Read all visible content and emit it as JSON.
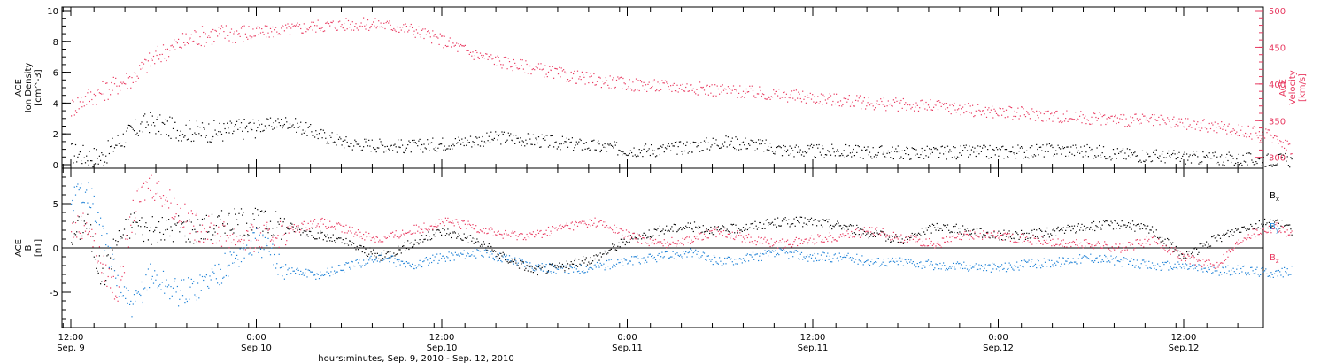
{
  "chart_data": [
    {
      "type": "scatter",
      "panel": "top",
      "ylabel_left": [
        "ACE",
        "Ion Density",
        "[cm^-3]"
      ],
      "ylabel_right": [
        "ACE",
        "Velocity",
        "[km/s]"
      ],
      "ylim_left": [
        0,
        10
      ],
      "yticks_left": [
        0,
        2,
        4,
        6,
        8,
        10
      ],
      "ylim_right": [
        290,
        500
      ],
      "yticks_right": [
        300,
        350,
        400,
        450,
        500
      ],
      "xlim_hours": [
        0,
        80
      ],
      "series": [
        {
          "axis": "left",
          "color": "#000000",
          "x": [
            0,
            1,
            2,
            3,
            4,
            5,
            6,
            7,
            8,
            10,
            12,
            14,
            16,
            18,
            20,
            22,
            24,
            26,
            28,
            30,
            32,
            34,
            36,
            38,
            40,
            42,
            44,
            46,
            48,
            50,
            52,
            54,
            56,
            58,
            60,
            62,
            64,
            66,
            68,
            70,
            72,
            74,
            76,
            78,
            79
          ],
          "y": [
            0.8,
            0.6,
            0.5,
            1.5,
            2.2,
            2.8,
            2.5,
            2.3,
            2.2,
            2.2,
            2.5,
            2.8,
            2.0,
            1.4,
            1.3,
            1.2,
            1.4,
            1.6,
            1.8,
            1.6,
            1.4,
            1.2,
            1.0,
            1.0,
            1.2,
            1.5,
            1.4,
            1.0,
            0.9,
            0.9,
            0.85,
            0.8,
            0.8,
            0.85,
            0.85,
            0.9,
            1.0,
            0.9,
            0.7,
            0.6,
            0.5,
            0.45,
            0.35,
            0.35,
            0.3
          ]
        },
        {
          "axis": "right",
          "color": "#e8385f",
          "x": [
            0,
            1,
            2,
            3,
            4,
            5,
            6,
            7,
            8,
            10,
            12,
            14,
            16,
            18,
            20,
            22,
            24,
            26,
            28,
            30,
            32,
            34,
            36,
            38,
            40,
            42,
            44,
            46,
            48,
            50,
            52,
            54,
            56,
            58,
            60,
            62,
            64,
            66,
            68,
            70,
            72,
            74,
            76,
            78,
            79
          ],
          "y": [
            368,
            382,
            390,
            400,
            410,
            430,
            445,
            455,
            465,
            470,
            470,
            475,
            480,
            482,
            482,
            475,
            460,
            442,
            430,
            422,
            412,
            406,
            400,
            398,
            396,
            392,
            389,
            385,
            382,
            378,
            374,
            372,
            370,
            366,
            362,
            360,
            356,
            354,
            352,
            350,
            346,
            342,
            336,
            328,
            312
          ]
        }
      ]
    },
    {
      "type": "scatter",
      "panel": "bottom",
      "ylabel": [
        "ACE",
        "B",
        "[nT]"
      ],
      "ylim": [
        -9,
        9
      ],
      "yticks": [
        -5,
        0,
        5
      ],
      "zero_line": true,
      "xlim_hours": [
        0,
        80
      ],
      "legend": [
        "Bx",
        "By",
        "Bz"
      ],
      "series": [
        {
          "name": "Bx",
          "color": "#000000",
          "x": [
            0,
            1,
            2,
            3,
            4,
            5,
            6,
            7,
            8,
            10,
            12,
            14,
            16,
            18,
            20,
            22,
            24,
            26,
            28,
            30,
            32,
            34,
            36,
            38,
            40,
            42,
            44,
            46,
            48,
            50,
            52,
            54,
            56,
            58,
            60,
            62,
            64,
            66,
            68,
            70,
            72,
            74,
            76,
            78,
            79
          ],
          "y": [
            1.5,
            3.0,
            -3.5,
            1.0,
            3.0,
            2.0,
            2.0,
            2.5,
            2.0,
            3.0,
            3.0,
            2.5,
            1.5,
            0.5,
            -1.0,
            0.5,
            2.0,
            1.0,
            -1.0,
            -2.5,
            -2.0,
            -1.0,
            1.0,
            2.0,
            2.5,
            2.0,
            2.5,
            3.0,
            3.0,
            2.5,
            1.5,
            1.0,
            2.5,
            2.0,
            1.5,
            1.5,
            2.0,
            2.5,
            2.8,
            2.0,
            -1.0,
            1.0,
            2.5,
            3.0,
            2.0
          ]
        },
        {
          "name": "By",
          "color": "#1a7fd6",
          "x": [
            0,
            1,
            2,
            3,
            4,
            5,
            6,
            7,
            8,
            10,
            12,
            14,
            16,
            18,
            20,
            22,
            24,
            26,
            28,
            30,
            32,
            34,
            36,
            38,
            40,
            42,
            44,
            46,
            48,
            50,
            52,
            54,
            56,
            58,
            60,
            62,
            64,
            66,
            68,
            70,
            72,
            74,
            76,
            78,
            79
          ],
          "y": [
            5.5,
            7.0,
            2.0,
            -4.0,
            -7.0,
            -3.0,
            -4.0,
            -5.0,
            -4.5,
            -2.0,
            1.0,
            -2.5,
            -3.0,
            -2.0,
            -1.0,
            -2.0,
            -1.0,
            -0.5,
            -1.0,
            -2.0,
            -2.5,
            -2.0,
            -1.5,
            -1.0,
            -0.5,
            -1.5,
            -1.0,
            -0.5,
            -1.0,
            -1.0,
            -1.5,
            -1.5,
            -2.0,
            -2.0,
            -2.2,
            -1.8,
            -1.5,
            -1.0,
            -1.5,
            -2.0,
            -2.0,
            -2.5,
            -2.5,
            -2.8,
            -2.5
          ]
        },
        {
          "name": "Bz",
          "color": "#e8385f",
          "x": [
            0,
            1,
            2,
            3,
            4,
            5,
            6,
            7,
            8,
            10,
            12,
            14,
            16,
            18,
            20,
            22,
            24,
            26,
            28,
            30,
            32,
            34,
            36,
            38,
            40,
            42,
            44,
            46,
            48,
            50,
            52,
            54,
            56,
            58,
            60,
            62,
            64,
            66,
            68,
            70,
            72,
            74,
            76,
            78,
            79
          ],
          "y": [
            2.0,
            3.0,
            -2.0,
            -5.0,
            4.0,
            7.5,
            6.0,
            4.0,
            2.5,
            1.5,
            1.0,
            2.0,
            3.0,
            2.0,
            1.0,
            2.0,
            3.0,
            2.5,
            1.5,
            1.5,
            2.5,
            3.0,
            1.5,
            0.5,
            1.0,
            2.0,
            1.0,
            0.5,
            1.0,
            1.5,
            2.0,
            1.0,
            0.5,
            1.5,
            1.5,
            1.0,
            0.5,
            0.5,
            0.0,
            1.0,
            -1.0,
            -2.0,
            1.5,
            2.5,
            1.5
          ]
        }
      ]
    }
  ],
  "x_axis": {
    "ticks": [
      {
        "hours": 0,
        "time": "12:00",
        "date": "Sep. 9"
      },
      {
        "hours": 12,
        "time": "0:00",
        "date": "Sep.10"
      },
      {
        "hours": 24,
        "time": "12:00",
        "date": "Sep.10"
      },
      {
        "hours": 36,
        "time": "0:00",
        "date": "Sep.11"
      },
      {
        "hours": 48,
        "time": "12:00",
        "date": "Sep.11"
      },
      {
        "hours": 60,
        "time": "0:00",
        "date": "Sep.12"
      },
      {
        "hours": 72,
        "time": "12:00",
        "date": "Sep.12"
      }
    ],
    "xlabel": "hours:minutes, Sep.  9, 2010 - Sep. 12, 2010"
  },
  "colors": {
    "black_series": "#000000",
    "blue_series": "#1a7fd6",
    "red_series": "#e8385f",
    "axis": "#000000"
  }
}
